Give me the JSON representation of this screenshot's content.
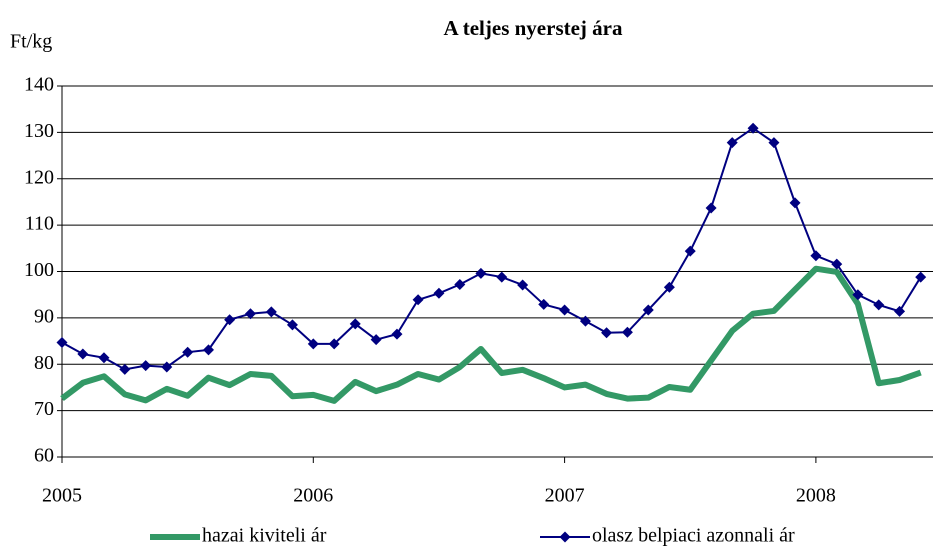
{
  "chart_data": {
    "type": "line",
    "title": "A teljes nyerstej ára",
    "y_label": "Ft/kg",
    "x": [
      2005,
      2005.083,
      2005.167,
      2005.25,
      2005.333,
      2005.417,
      2005.5,
      2005.583,
      2005.667,
      2005.75,
      2005.833,
      2005.917,
      2006,
      2006.083,
      2006.167,
      2006.25,
      2006.333,
      2006.417,
      2006.5,
      2006.583,
      2006.667,
      2006.75,
      2006.833,
      2006.917,
      2007,
      2007.083,
      2007.167,
      2007.25,
      2007.333,
      2007.417,
      2007.5,
      2007.583,
      2007.667,
      2007.75,
      2007.833,
      2007.917,
      2008,
      2008.083,
      2008.167,
      2008.25,
      2008.333,
      2008.417
    ],
    "series": [
      {
        "name": "hazai kiviteli ár",
        "color": "#339966",
        "marker": false,
        "values": [
          72.6,
          76.0,
          77.4,
          73.5,
          72.2,
          74.7,
          73.2,
          77.1,
          75.5,
          77.9,
          77.5,
          73.1,
          73.4,
          72.1,
          76.2,
          74.2,
          75.6,
          77.9,
          76.7,
          79.4,
          83.3,
          78.1,
          78.8,
          77.0,
          75.0,
          75.6,
          73.6,
          72.6,
          72.8,
          75.1,
          74.5,
          80.8,
          87.2,
          90.9,
          91.5,
          96.1,
          100.6,
          99.9,
          93.0,
          75.9,
          76.6,
          78.2
        ]
      },
      {
        "name": "olasz belpiaci azonnali ár",
        "color": "#000080",
        "marker": true,
        "values": [
          84.7,
          82.2,
          81.4,
          78.9,
          79.7,
          79.4,
          82.6,
          83.1,
          89.6,
          90.9,
          91.3,
          88.5,
          84.4,
          84.4,
          88.7,
          85.3,
          86.5,
          93.9,
          95.3,
          97.2,
          99.6,
          98.8,
          97.1,
          92.9,
          91.7,
          89.3,
          86.8,
          86.9,
          91.7,
          96.6,
          104.4,
          113.7,
          127.8,
          130.9,
          127.8,
          114.8,
          103.4,
          101.6,
          95.0,
          92.8,
          91.4,
          98.8
        ]
      }
    ],
    "xlim": [
      2005,
      2008.466
    ],
    "xticks": [
      2005,
      2006,
      2007,
      2008
    ],
    "ylim": [
      60,
      140
    ],
    "yticks": [
      60,
      70,
      80,
      90,
      100,
      110,
      120,
      130,
      140
    ],
    "grid": true,
    "legend": "bottom"
  }
}
